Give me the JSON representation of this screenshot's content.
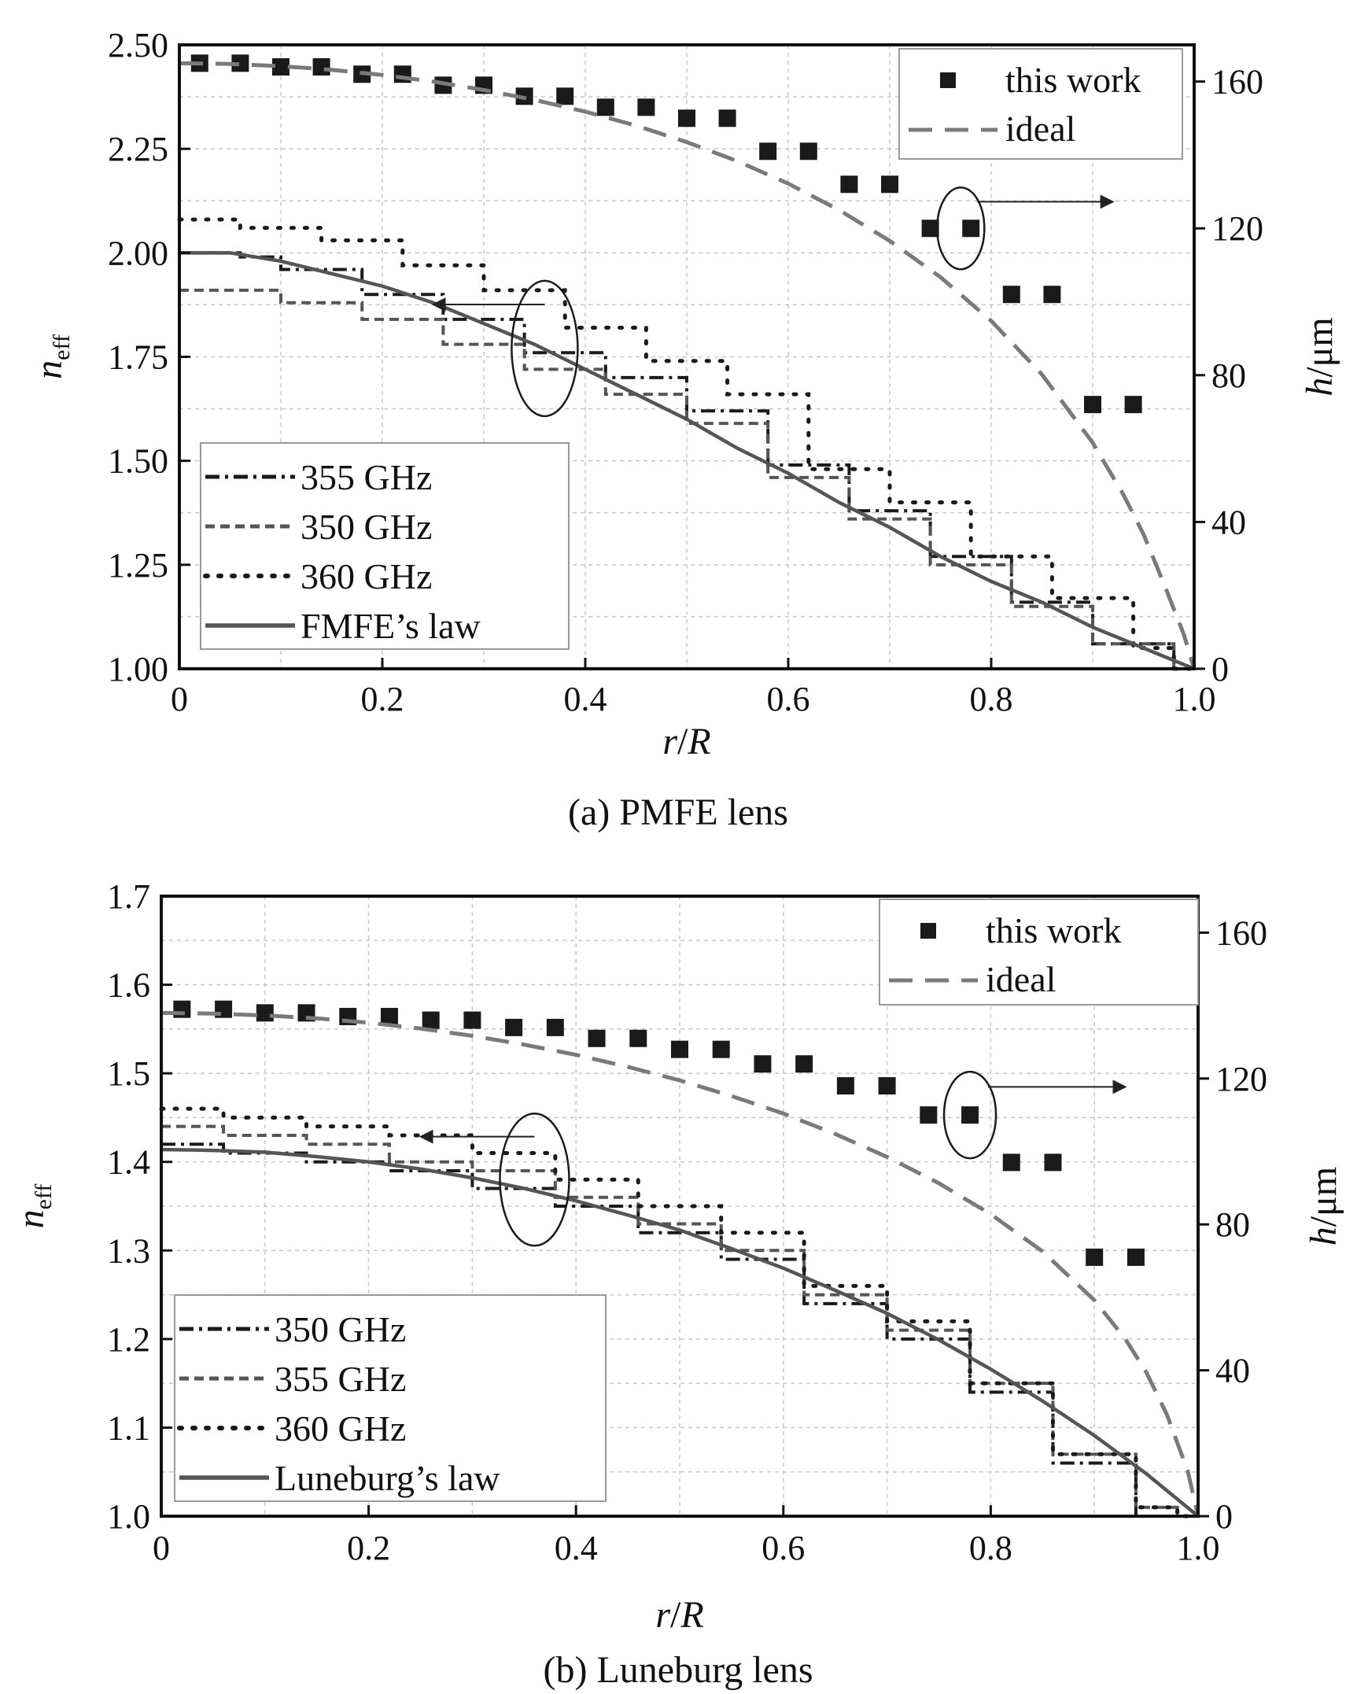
{
  "figure": {
    "panels": [
      {
        "id": "a",
        "caption": "(a) PMFE lens",
        "xlabel": {
          "italic": "r",
          "mid": "/",
          "italic2": "R"
        },
        "ylabel_left": {
          "main": "n",
          "sub": "eff"
        },
        "ylabel_right": {
          "italic": "h",
          "rest": "/μm"
        },
        "x_ticks": [
          "0",
          "0.2",
          "0.4",
          "0.6",
          "0.8",
          "1.0"
        ],
        "y_ticks_left": [
          "1.00",
          "1.25",
          "1.50",
          "1.75",
          "2.00",
          "2.25",
          "2.50"
        ],
        "y_ticks_right": [
          "0",
          "40",
          "80",
          "120",
          "160"
        ],
        "legend_h": [
          "this work",
          "ideal"
        ],
        "legend_n": [
          "355 GHz",
          "350 GHz",
          "360 GHz",
          "FMFE’s law"
        ]
      },
      {
        "id": "b",
        "caption": "(b) Luneburg lens",
        "xlabel": {
          "italic": "r",
          "mid": "/",
          "italic2": "R"
        },
        "ylabel_left": {
          "main": "n",
          "sub": "eff"
        },
        "ylabel_right": {
          "italic": "h",
          "rest": "/μm"
        },
        "x_ticks": [
          "0",
          "0.2",
          "0.4",
          "0.6",
          "0.8",
          "1.0"
        ],
        "y_ticks_left": [
          "1.0",
          "1.1",
          "1.2",
          "1.3",
          "1.4",
          "1.5",
          "1.6",
          "1.7"
        ],
        "y_ticks_right": [
          "0",
          "40",
          "80",
          "120",
          "160"
        ],
        "legend_h": [
          "this work",
          "ideal"
        ],
        "legend_n": [
          "350 GHz",
          "355 GHz",
          "360 GHz",
          "Luneburg’s law"
        ]
      }
    ]
  },
  "chart_data": [
    {
      "type": "line",
      "title": "(a) PMFE lens",
      "xlabel": "r/R",
      "ylabel": "n_eff",
      "ylabel_right": "h/μm",
      "xlim": [
        0,
        1.0
      ],
      "ylim": [
        1.0,
        2.5
      ],
      "ylim_right": [
        0,
        170
      ],
      "grid": true,
      "legend_placement": [
        "top-right",
        "bottom-left"
      ],
      "colors": {
        "dark": "#1a1a1a",
        "mid": "#555555",
        "ideal": "#7a7a7a"
      },
      "series": [
        {
          "name": "this work",
          "axis": "right",
          "style": "square-markers",
          "x": [
            0.02,
            0.06,
            0.1,
            0.14,
            0.18,
            0.22,
            0.26,
            0.3,
            0.34,
            0.38,
            0.42,
            0.46,
            0.5,
            0.54,
            0.58,
            0.62,
            0.66,
            0.7,
            0.74,
            0.78,
            0.82,
            0.86,
            0.9,
            0.94
          ],
          "y": [
            165,
            165,
            164,
            164,
            162,
            162,
            159,
            159,
            156,
            156,
            153,
            153,
            150,
            150,
            141,
            141,
            132,
            132,
            120,
            120,
            102,
            102,
            72,
            72
          ]
        },
        {
          "name": "ideal",
          "axis": "right",
          "style": "long-dash",
          "x": [
            0,
            0.05,
            0.1,
            0.15,
            0.2,
            0.25,
            0.3,
            0.35,
            0.4,
            0.45,
            0.5,
            0.55,
            0.6,
            0.65,
            0.7,
            0.75,
            0.8,
            0.85,
            0.9,
            0.93,
            0.95,
            0.97,
            0.99,
            1.0
          ],
          "y": [
            165,
            164.8,
            164.2,
            163.2,
            161.8,
            160,
            157.7,
            155,
            151.8,
            148,
            143.5,
            138.3,
            132.2,
            125,
            116.6,
            106.7,
            94.8,
            80.2,
            61.6,
            47.6,
            36.7,
            23.3,
            9.2,
            0
          ]
        },
        {
          "name": "355 GHz",
          "axis": "left",
          "style": "dash-dot",
          "x": [
            0,
            0.02,
            0.06,
            0.1,
            0.14,
            0.18,
            0.22,
            0.26,
            0.3,
            0.34,
            0.38,
            0.42,
            0.46,
            0.5,
            0.54,
            0.58,
            0.62,
            0.66,
            0.7,
            0.74,
            0.78,
            0.82,
            0.86,
            0.9,
            0.94,
            0.98,
            1.0
          ],
          "y": [
            2.0,
            2.0,
            1.99,
            1.96,
            1.96,
            1.9,
            1.9,
            1.84,
            1.84,
            1.76,
            1.76,
            1.7,
            1.7,
            1.62,
            1.62,
            1.49,
            1.49,
            1.38,
            1.38,
            1.27,
            1.27,
            1.16,
            1.16,
            1.06,
            1.06,
            1.0,
            1.0
          ]
        },
        {
          "name": "350 GHz",
          "axis": "left",
          "style": "short-dash",
          "x": [
            0,
            0.02,
            0.06,
            0.1,
            0.14,
            0.18,
            0.22,
            0.26,
            0.3,
            0.34,
            0.38,
            0.42,
            0.46,
            0.5,
            0.54,
            0.58,
            0.62,
            0.66,
            0.7,
            0.74,
            0.78,
            0.82,
            0.86,
            0.9,
            0.94,
            0.98,
            1.0
          ],
          "y": [
            1.91,
            1.91,
            1.91,
            1.88,
            1.88,
            1.84,
            1.84,
            1.78,
            1.78,
            1.72,
            1.72,
            1.66,
            1.66,
            1.59,
            1.59,
            1.46,
            1.46,
            1.36,
            1.36,
            1.25,
            1.25,
            1.15,
            1.15,
            1.06,
            1.06,
            1.0,
            1.0
          ]
        },
        {
          "name": "360 GHz",
          "axis": "left",
          "style": "dotted",
          "x": [
            0,
            0.02,
            0.06,
            0.1,
            0.14,
            0.18,
            0.22,
            0.26,
            0.3,
            0.34,
            0.38,
            0.42,
            0.46,
            0.5,
            0.54,
            0.58,
            0.62,
            0.66,
            0.7,
            0.74,
            0.78,
            0.82,
            0.86,
            0.9,
            0.94,
            0.98,
            1.0
          ],
          "y": [
            2.08,
            2.08,
            2.06,
            2.06,
            2.03,
            2.03,
            1.97,
            1.97,
            1.91,
            1.91,
            1.82,
            1.82,
            1.74,
            1.74,
            1.66,
            1.66,
            1.48,
            1.48,
            1.4,
            1.4,
            1.27,
            1.27,
            1.17,
            1.17,
            1.05,
            1.0,
            1.0
          ]
        },
        {
          "name": "FMFE’s law",
          "axis": "left",
          "style": "solid",
          "x": [
            0,
            0.05,
            0.1,
            0.15,
            0.2,
            0.25,
            0.3,
            0.35,
            0.4,
            0.45,
            0.5,
            0.55,
            0.6,
            0.65,
            0.7,
            0.75,
            0.8,
            0.85,
            0.9,
            0.95,
            1.0
          ],
          "y": [
            2.0,
            2.0,
            1.98,
            1.95,
            1.92,
            1.88,
            1.83,
            1.78,
            1.72,
            1.66,
            1.6,
            1.53,
            1.47,
            1.4,
            1.34,
            1.27,
            1.21,
            1.16,
            1.1,
            1.05,
            1.0
          ]
        }
      ],
      "annotations": [
        {
          "type": "ellipse-arrow",
          "target": "left-axis",
          "at": [
            0.36,
            1.77
          ]
        },
        {
          "type": "ellipse-arrow",
          "target": "right-axis",
          "at": [
            0.77,
            120
          ]
        }
      ]
    },
    {
      "type": "line",
      "title": "(b) Luneburg lens",
      "xlabel": "r/R",
      "ylabel": "n_eff",
      "ylabel_right": "h/μm",
      "xlim": [
        0,
        1.0
      ],
      "ylim": [
        1.0,
        1.7
      ],
      "ylim_right": [
        0,
        170
      ],
      "grid": true,
      "legend_placement": [
        "top-right",
        "bottom-left"
      ],
      "colors": {
        "dark": "#1a1a1a",
        "mid": "#555555",
        "ideal": "#7a7a7a"
      },
      "series": [
        {
          "name": "this work",
          "axis": "right",
          "style": "square-markers",
          "x": [
            0.02,
            0.06,
            0.1,
            0.14,
            0.18,
            0.22,
            0.26,
            0.3,
            0.34,
            0.38,
            0.42,
            0.46,
            0.5,
            0.54,
            0.58,
            0.62,
            0.66,
            0.7,
            0.74,
            0.78,
            0.82,
            0.86,
            0.9,
            0.94
          ],
          "y": [
            139,
            139,
            138,
            138,
            137,
            137,
            136,
            136,
            134,
            134,
            131,
            131,
            128,
            128,
            124,
            124,
            118,
            118,
            110,
            110,
            97,
            97,
            71,
            71
          ]
        },
        {
          "name": "ideal",
          "axis": "right",
          "style": "long-dash",
          "x": [
            0,
            0.05,
            0.1,
            0.15,
            0.2,
            0.25,
            0.3,
            0.35,
            0.4,
            0.45,
            0.5,
            0.55,
            0.6,
            0.65,
            0.7,
            0.75,
            0.8,
            0.85,
            0.9,
            0.93,
            0.95,
            0.97,
            0.99,
            1.0
          ],
          "y": [
            138,
            137.8,
            137.3,
            136.5,
            135.3,
            133.7,
            131.7,
            129.3,
            126.5,
            123.2,
            119.5,
            115.2,
            110.4,
            104.8,
            98.5,
            91.3,
            82.8,
            72.6,
            59.2,
            48.5,
            39.5,
            27.8,
            12.4,
            0
          ]
        },
        {
          "name": "350 GHz",
          "axis": "left",
          "style": "dash-dot",
          "x": [
            0,
            0.02,
            0.06,
            0.1,
            0.14,
            0.18,
            0.22,
            0.26,
            0.3,
            0.34,
            0.38,
            0.42,
            0.46,
            0.5,
            0.54,
            0.58,
            0.62,
            0.66,
            0.7,
            0.74,
            0.78,
            0.82,
            0.86,
            0.9,
            0.94,
            0.98,
            1.0
          ],
          "y": [
            1.42,
            1.42,
            1.41,
            1.41,
            1.4,
            1.4,
            1.39,
            1.39,
            1.37,
            1.37,
            1.35,
            1.35,
            1.32,
            1.32,
            1.29,
            1.29,
            1.24,
            1.24,
            1.2,
            1.2,
            1.14,
            1.14,
            1.06,
            1.06,
            1.0,
            1.0,
            1.0
          ]
        },
        {
          "name": "355 GHz",
          "axis": "left",
          "style": "short-dash",
          "x": [
            0,
            0.02,
            0.06,
            0.1,
            0.14,
            0.18,
            0.22,
            0.26,
            0.3,
            0.34,
            0.38,
            0.42,
            0.46,
            0.5,
            0.54,
            0.58,
            0.62,
            0.66,
            0.7,
            0.74,
            0.78,
            0.82,
            0.86,
            0.9,
            0.94,
            0.98,
            1.0
          ],
          "y": [
            1.44,
            1.44,
            1.43,
            1.43,
            1.42,
            1.42,
            1.4,
            1.4,
            1.39,
            1.39,
            1.36,
            1.36,
            1.33,
            1.33,
            1.3,
            1.3,
            1.25,
            1.25,
            1.21,
            1.21,
            1.15,
            1.15,
            1.07,
            1.07,
            1.01,
            1.0,
            1.0
          ]
        },
        {
          "name": "360 GHz",
          "axis": "left",
          "style": "dotted",
          "x": [
            0,
            0.02,
            0.06,
            0.1,
            0.14,
            0.18,
            0.22,
            0.26,
            0.3,
            0.34,
            0.38,
            0.42,
            0.46,
            0.5,
            0.54,
            0.58,
            0.62,
            0.66,
            0.7,
            0.74,
            0.78,
            0.82,
            0.86,
            0.9,
            0.94,
            0.98,
            1.0
          ],
          "y": [
            1.46,
            1.46,
            1.45,
            1.45,
            1.44,
            1.44,
            1.43,
            1.43,
            1.41,
            1.41,
            1.38,
            1.38,
            1.35,
            1.35,
            1.32,
            1.32,
            1.26,
            1.26,
            1.22,
            1.22,
            1.15,
            1.15,
            1.07,
            1.07,
            1.01,
            1.0,
            1.0
          ]
        },
        {
          "name": "Luneburg’s law",
          "axis": "left",
          "style": "solid",
          "x": [
            0,
            0.05,
            0.1,
            0.15,
            0.2,
            0.25,
            0.3,
            0.35,
            0.4,
            0.45,
            0.5,
            0.55,
            0.6,
            0.65,
            0.7,
            0.75,
            0.8,
            0.85,
            0.9,
            0.95,
            1.0
          ],
          "y": [
            1.414,
            1.413,
            1.411,
            1.406,
            1.4,
            1.392,
            1.382,
            1.37,
            1.356,
            1.34,
            1.323,
            1.302,
            1.28,
            1.255,
            1.229,
            1.199,
            1.166,
            1.13,
            1.091,
            1.048,
            1.0
          ]
        }
      ],
      "annotations": [
        {
          "type": "ellipse-arrow",
          "target": "left-axis",
          "at": [
            0.36,
            1.38
          ]
        },
        {
          "type": "ellipse-arrow",
          "target": "right-axis",
          "at": [
            0.78,
            110
          ]
        }
      ]
    }
  ]
}
